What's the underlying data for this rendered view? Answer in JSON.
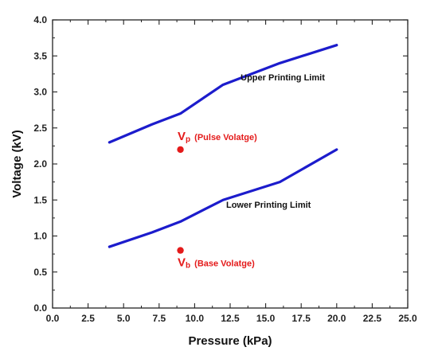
{
  "chart_data": {
    "type": "line",
    "xlabel": "Pressure (kPa)",
    "ylabel": "Voltage (kV)",
    "xlim": [
      0.0,
      25.0
    ],
    "ylim": [
      0.0,
      4.0
    ],
    "x_ticks": [
      "0.0",
      "2.5",
      "5.0",
      "7.5",
      "10.0",
      "12.5",
      "15.0",
      "17.5",
      "20.0",
      "22.5",
      "25.0"
    ],
    "y_ticks": [
      "0.0",
      "0.5",
      "1.0",
      "1.5",
      "2.0",
      "2.5",
      "3.0",
      "3.5",
      "4.0"
    ],
    "grid": false,
    "line_color": "#1c1ccc",
    "series": [
      {
        "name": "Upper Printing Limit",
        "x": [
          4,
          7,
          9,
          12,
          16,
          20
        ],
        "values": [
          2.3,
          2.55,
          2.7,
          3.1,
          3.4,
          3.65
        ]
      },
      {
        "name": "Lower Printing Limit",
        "x": [
          4,
          7,
          9,
          12,
          16,
          20
        ],
        "values": [
          0.85,
          1.05,
          1.2,
          1.5,
          1.75,
          2.2
        ]
      }
    ],
    "points": [
      {
        "x": 9,
        "y": 2.2,
        "color": "#e41a1a",
        "symbol": "V",
        "subscript": "p",
        "label": "(Pulse Volatge)"
      },
      {
        "x": 9,
        "y": 0.8,
        "color": "#e41a1a",
        "symbol": "V",
        "subscript": "b",
        "label": "(Base Volatge)"
      }
    ]
  }
}
